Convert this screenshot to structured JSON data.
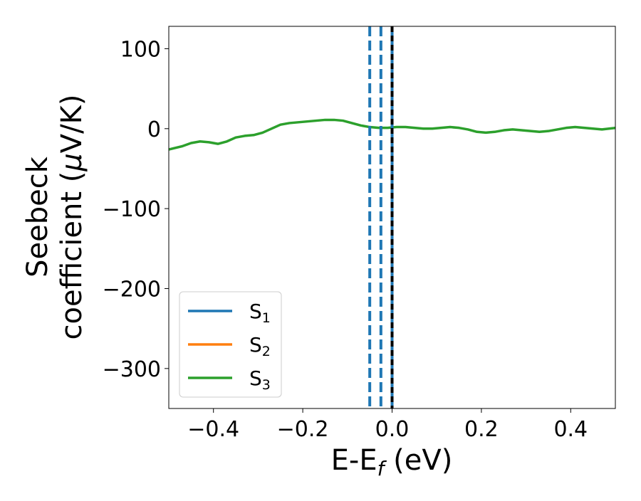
{
  "chart_data": {
    "type": "line",
    "xlabel_main": "E-E",
    "xlabel_sub": "f",
    "xlabel_unit": " (eV)",
    "ylabel_line1": "Seebeck",
    "ylabel_line2_text": "coefficient  (",
    "ylabel_line2_mu": "μ",
    "ylabel_line2_unit": "V/K)",
    "xlim": [
      -0.5,
      0.5
    ],
    "ylim": [
      -350,
      128
    ],
    "xticks": [
      {
        "value": -0.4,
        "label": "−0.4"
      },
      {
        "value": -0.2,
        "label": "−0.2"
      },
      {
        "value": 0.0,
        "label": "0.0"
      },
      {
        "value": 0.2,
        "label": "0.2"
      },
      {
        "value": 0.4,
        "label": "0.4"
      }
    ],
    "yticks": [
      {
        "value": 100,
        "label": "100"
      },
      {
        "value": 0,
        "label": "0"
      },
      {
        "value": -100,
        "label": "−100"
      },
      {
        "value": -200,
        "label": "−200"
      },
      {
        "value": -300,
        "label": "−300"
      }
    ],
    "legend": {
      "position": "lower-left",
      "entries": [
        {
          "base": "S",
          "sub": "1",
          "color": "#1f77b4"
        },
        {
          "base": "S",
          "sub": "2",
          "color": "#ff7f0e"
        },
        {
          "base": "S",
          "sub": "3",
          "color": "#2ca02c"
        }
      ]
    },
    "vlines": [
      {
        "x": -0.05,
        "color": "#1f77b4",
        "style": "dashed"
      },
      {
        "x": -0.025,
        "color": "#1f77b4",
        "style": "dashed"
      },
      {
        "x": 0.0,
        "color": "#1f77b4",
        "style": "solid"
      },
      {
        "x": 0.0,
        "color": "#000000",
        "style": "dashed"
      }
    ],
    "series": [
      {
        "color": "#2ca02c",
        "x": [
          -0.5,
          -0.47,
          -0.45,
          -0.43,
          -0.41,
          -0.39,
          -0.37,
          -0.35,
          -0.33,
          -0.31,
          -0.29,
          -0.27,
          -0.25,
          -0.23,
          -0.21,
          -0.19,
          -0.17,
          -0.15,
          -0.13,
          -0.11,
          -0.09,
          -0.07,
          -0.05,
          -0.03,
          -0.01,
          0.01,
          0.03,
          0.05,
          0.07,
          0.09,
          0.11,
          0.13,
          0.15,
          0.17,
          0.19,
          0.21,
          0.23,
          0.25,
          0.27,
          0.29,
          0.31,
          0.33,
          0.35,
          0.37,
          0.39,
          0.41,
          0.43,
          0.45,
          0.47,
          0.5
        ],
        "y": [
          -26,
          -22,
          -18,
          -16,
          -17,
          -19,
          -16,
          -11,
          -9,
          -8,
          -5,
          0,
          5,
          7,
          8,
          9,
          10,
          11,
          11,
          10,
          7,
          4,
          2,
          1,
          1,
          2,
          2,
          1,
          0,
          0,
          1,
          2,
          1,
          -1,
          -4,
          -5,
          -4,
          -2,
          -1,
          -2,
          -3,
          -4,
          -3,
          -1,
          1,
          2,
          1,
          0,
          -1,
          1
        ]
      },
      {
        "color": "#ff7f0e",
        "x": [
          -0.5,
          0.5
        ],
        "y": [
          null,
          null
        ]
      }
    ]
  }
}
